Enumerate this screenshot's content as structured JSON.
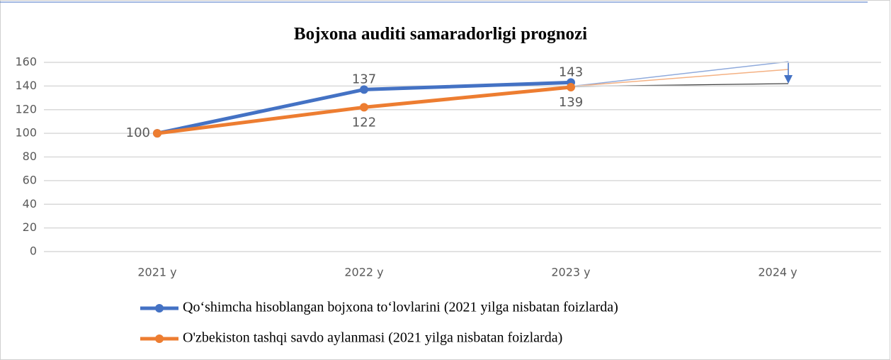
{
  "chart_data": {
    "type": "line",
    "title": "Bojxona auditi samaradorligi prognozi",
    "categories": [
      "2021 y",
      "2022 y",
      "2023 y",
      "2024 y"
    ],
    "series": [
      {
        "name": "Qo‘shimcha hisoblangan bojxona to‘lovlarini (2021 yilga nisbatan foizlarda)",
        "color": "#4472c4",
        "values": [
          100,
          137,
          143,
          null
        ]
      },
      {
        "name": "O'zbekiston tashqi savdo aylanmasi (2021 yilga nisbatan foizlarda)",
        "color": "#ed7d31",
        "values": [
          100,
          122,
          139,
          null
        ]
      }
    ],
    "ylim": [
      0,
      160
    ],
    "yticks": [
      0,
      20,
      40,
      60,
      80,
      100,
      120,
      140,
      160
    ],
    "grid": true,
    "legend": "bottom"
  }
}
